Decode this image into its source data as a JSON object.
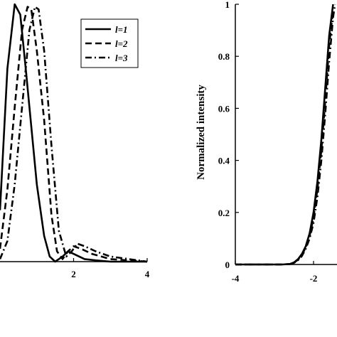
{
  "chart_data": [
    {
      "type": "line",
      "title": "",
      "xlabel": "",
      "ylabel": "",
      "xlim": [
        0,
        4
      ],
      "ylim": [
        0,
        1
      ],
      "xticks": [
        {
          "v": 2,
          "label": "2"
        },
        {
          "v": 4,
          "label": "4"
        }
      ],
      "legend": {
        "placement": "top-right"
      },
      "series": [
        {
          "name": "l=1",
          "style": "solid",
          "x": [
            0,
            0.2,
            0.4,
            0.55,
            0.7,
            0.8,
            1.0,
            1.2,
            1.35,
            1.5,
            1.7,
            1.85,
            2.0,
            2.3,
            2.6,
            3.0,
            4.0
          ],
          "y": [
            0.2,
            0.75,
            1.0,
            0.96,
            0.75,
            0.6,
            0.3,
            0.1,
            0.02,
            0.0,
            0.02,
            0.04,
            0.03,
            0.01,
            0.005,
            0.0,
            0.0
          ]
        },
        {
          "name": "l=2",
          "style": "dashed",
          "x": [
            0,
            0.2,
            0.4,
            0.6,
            0.75,
            0.85,
            1.0,
            1.2,
            1.4,
            1.55,
            1.7,
            1.85,
            2.0,
            2.2,
            2.5,
            3.0,
            4.0
          ],
          "y": [
            0.05,
            0.28,
            0.6,
            0.9,
            0.99,
            0.98,
            0.82,
            0.55,
            0.18,
            0.04,
            0.01,
            0.04,
            0.06,
            0.05,
            0.03,
            0.01,
            0.0
          ]
        },
        {
          "name": "l=3",
          "style": "dashdot",
          "x": [
            0,
            0.2,
            0.4,
            0.6,
            0.8,
            0.95,
            1.05,
            1.2,
            1.4,
            1.6,
            1.8,
            1.95,
            2.1,
            2.3,
            2.6,
            3.0,
            4.0
          ],
          "y": [
            0.01,
            0.08,
            0.3,
            0.6,
            0.9,
            0.99,
            0.98,
            0.82,
            0.45,
            0.12,
            0.02,
            0.04,
            0.07,
            0.06,
            0.04,
            0.02,
            0.0
          ]
        }
      ]
    },
    {
      "type": "line",
      "title": "",
      "xlabel": "",
      "ylabel": "Normalized intensity",
      "xlim": [
        -4,
        -1.4
      ],
      "ylim": [
        0,
        1
      ],
      "xticks": [
        {
          "v": -4,
          "label": "-4"
        },
        {
          "v": -2,
          "label": "-2"
        }
      ],
      "yticks": [
        {
          "v": 0,
          "label": "0"
        },
        {
          "v": 0.2,
          "label": "0.2"
        },
        {
          "v": 0.4,
          "label": "0.4"
        },
        {
          "v": 0.6,
          "label": "0.6"
        },
        {
          "v": 0.8,
          "label": "0.8"
        },
        {
          "v": 1,
          "label": "1"
        }
      ],
      "series": [
        {
          "style": "solid",
          "x": [
            -4,
            -2.8,
            -2.6,
            -2.5,
            -2.4,
            -2.3,
            -2.2,
            -2.1,
            -2.0,
            -1.9,
            -1.8,
            -1.7,
            -1.6,
            -1.5
          ],
          "y": [
            0,
            0,
            0.002,
            0.008,
            0.02,
            0.04,
            0.07,
            0.12,
            0.2,
            0.32,
            0.48,
            0.68,
            0.88,
            1.0
          ]
        },
        {
          "style": "dashed",
          "x": [
            -4,
            -2.8,
            -2.6,
            -2.5,
            -2.4,
            -2.3,
            -2.2,
            -2.1,
            -2.0,
            -1.9,
            -1.8,
            -1.7,
            -1.6,
            -1.5
          ],
          "y": [
            0,
            0,
            0.002,
            0.007,
            0.018,
            0.036,
            0.065,
            0.11,
            0.18,
            0.29,
            0.44,
            0.63,
            0.84,
            0.98
          ]
        },
        {
          "style": "dashdot",
          "x": [
            -4,
            -2.8,
            -2.6,
            -2.5,
            -2.4,
            -2.3,
            -2.2,
            -2.1,
            -2.0,
            -1.9,
            -1.8,
            -1.7,
            -1.6,
            -1.5,
            -1.45
          ],
          "y": [
            0,
            0,
            0.002,
            0.006,
            0.016,
            0.032,
            0.06,
            0.1,
            0.16,
            0.26,
            0.4,
            0.58,
            0.78,
            0.95,
            1.0
          ]
        }
      ]
    }
  ]
}
